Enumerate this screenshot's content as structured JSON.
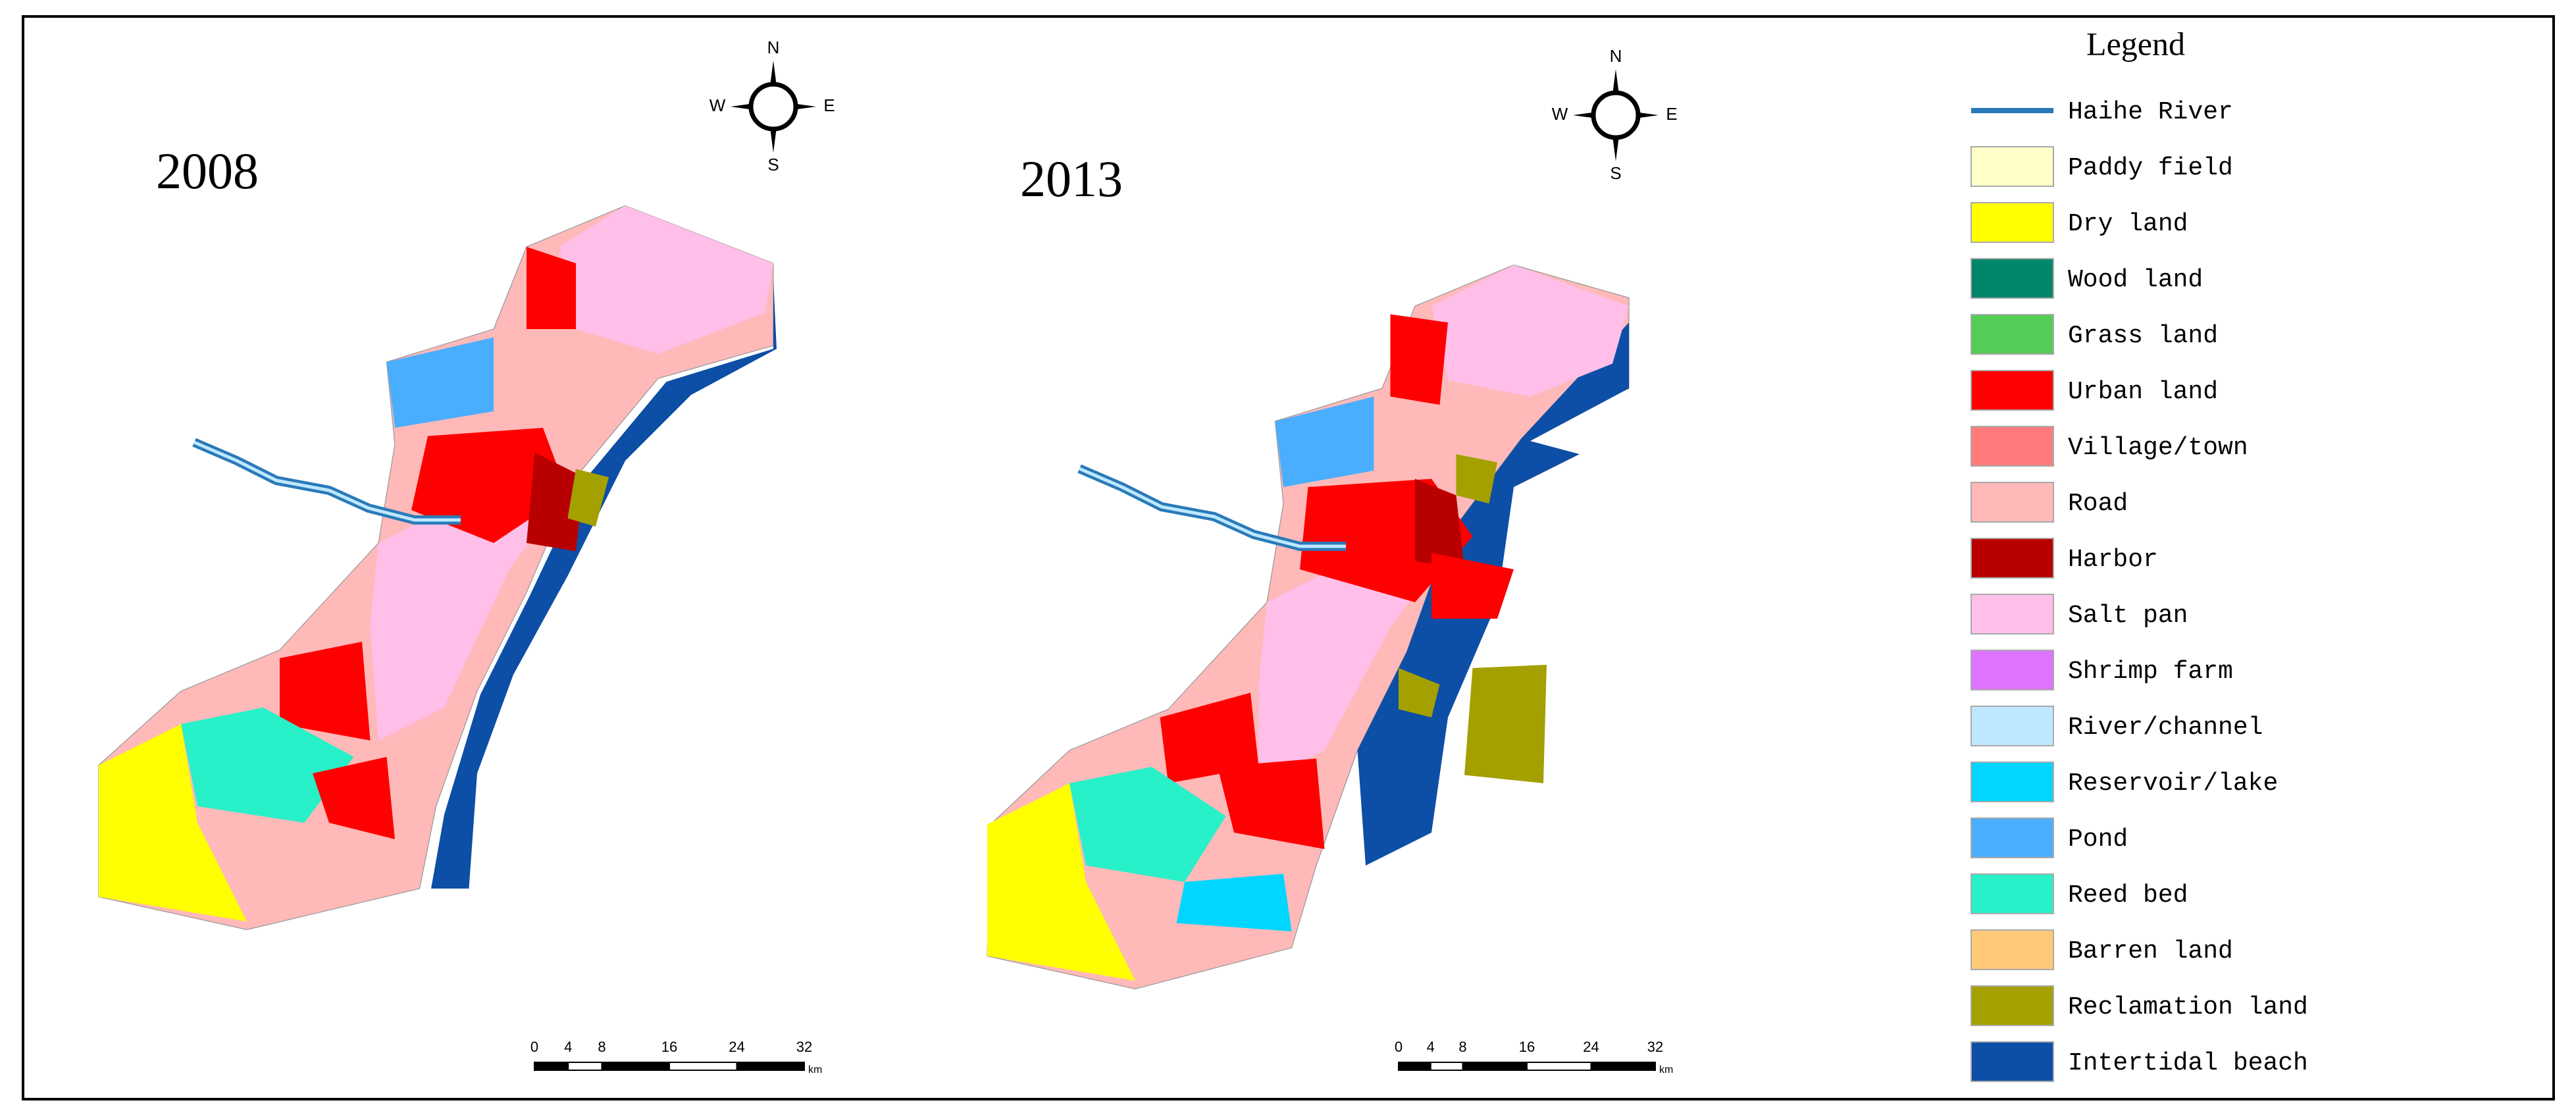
{
  "maps": [
    {
      "year": "2008",
      "compass": {
        "n": "N",
        "s": "S",
        "e": "E",
        "w": "W"
      },
      "scale": {
        "ticks": [
          0,
          4,
          8,
          16,
          24,
          32
        ],
        "unit": "km"
      }
    },
    {
      "year": "2013",
      "compass": {
        "n": "N",
        "s": "S",
        "e": "E",
        "w": "W"
      },
      "scale": {
        "ticks": [
          0,
          4,
          8,
          16,
          24,
          32
        ],
        "unit": "km"
      }
    }
  ],
  "legend": {
    "title": "Legend",
    "items": [
      {
        "label": "Haihe River",
        "color": "#2a7ab8",
        "symbol": "line"
      },
      {
        "label": "Paddy field",
        "color": "#ffffc8",
        "symbol": "patch"
      },
      {
        "label": "Dry land",
        "color": "#ffff00",
        "symbol": "patch"
      },
      {
        "label": "Wood land",
        "color": "#00866b",
        "symbol": "patch"
      },
      {
        "label": "Grass land",
        "color": "#55cc55",
        "symbol": "patch"
      },
      {
        "label": "Urban land",
        "color": "#ff0000",
        "symbol": "patch"
      },
      {
        "label": "Village/town",
        "color": "#ff7b7b",
        "symbol": "patch"
      },
      {
        "label": "Road",
        "color": "#ffb9b9",
        "symbol": "patch"
      },
      {
        "label": "Harbor",
        "color": "#b80000",
        "symbol": "patch"
      },
      {
        "label": "Salt pan",
        "color": "#ffbfe9",
        "symbol": "patch"
      },
      {
        "label": "Shrimp farm",
        "color": "#de73ff",
        "symbol": "patch"
      },
      {
        "label": "River/channel",
        "color": "#bee8ff",
        "symbol": "patch"
      },
      {
        "label": "Reservoir/lake",
        "color": "#00d6ff",
        "symbol": "patch"
      },
      {
        "label": "Pond",
        "color": "#4aaeff",
        "symbol": "patch"
      },
      {
        "label": "Reed bed",
        "color": "#28f0c8",
        "symbol": "patch"
      },
      {
        "label": "Barren land",
        "color": "#ffc97a",
        "symbol": "patch"
      },
      {
        "label": "Reclamation land",
        "color": "#a4a000",
        "symbol": "patch"
      },
      {
        "label": "Intertidal beach",
        "color": "#0d4ea6",
        "symbol": "patch"
      }
    ]
  }
}
